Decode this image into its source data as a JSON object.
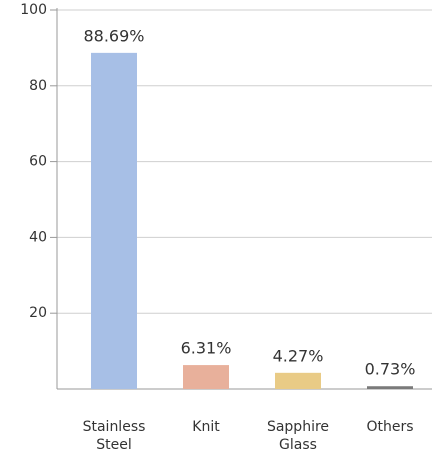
{
  "chart_data": {
    "type": "bar",
    "categories": [
      "Stainless Steel",
      "Knit",
      "Sapphire Glass",
      "Others"
    ],
    "values": [
      88.69,
      6.31,
      4.27,
      0.73
    ],
    "value_labels": [
      "88.69%",
      "6.31%",
      "4.27%",
      "0.73%"
    ],
    "colors": [
      "#a7bfe6",
      "#e8b09b",
      "#e9cb86",
      "#7a7a7a"
    ],
    "ylim": [
      0,
      100
    ],
    "yticks": [
      20,
      40,
      60,
      80,
      100
    ],
    "grid": true
  }
}
